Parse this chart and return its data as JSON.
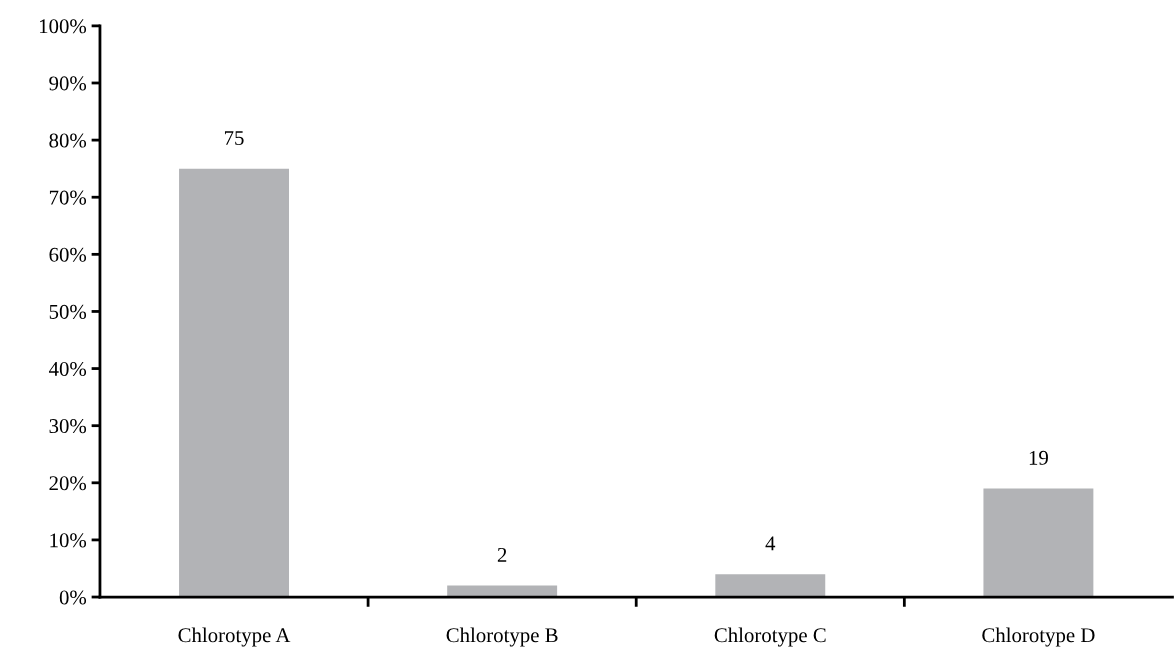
{
  "chart_data": {
    "type": "bar",
    "categories": [
      "Chlorotype A",
      "Chlorotype B",
      "Chlorotype C",
      "Chlorotype D"
    ],
    "values": [
      75,
      2,
      4,
      19
    ],
    "color": "#b2b3b6",
    "ylim": [
      0,
      100
    ],
    "yticks": [
      {
        "value": 0,
        "label": "0%"
      },
      {
        "value": 10,
        "label": "10%"
      },
      {
        "value": 20,
        "label": "20%"
      },
      {
        "value": 30,
        "label": "30%"
      },
      {
        "value": 40,
        "label": "40%"
      },
      {
        "value": 50,
        "label": "50%"
      },
      {
        "value": 60,
        "label": "60%"
      },
      {
        "value": 70,
        "label": "70%"
      },
      {
        "value": 80,
        "label": "80%"
      },
      {
        "value": 90,
        "label": "90%"
      },
      {
        "value": 100,
        "label": "100%"
      }
    ],
    "data_labels": true,
    "grid": false,
    "legend": false
  }
}
